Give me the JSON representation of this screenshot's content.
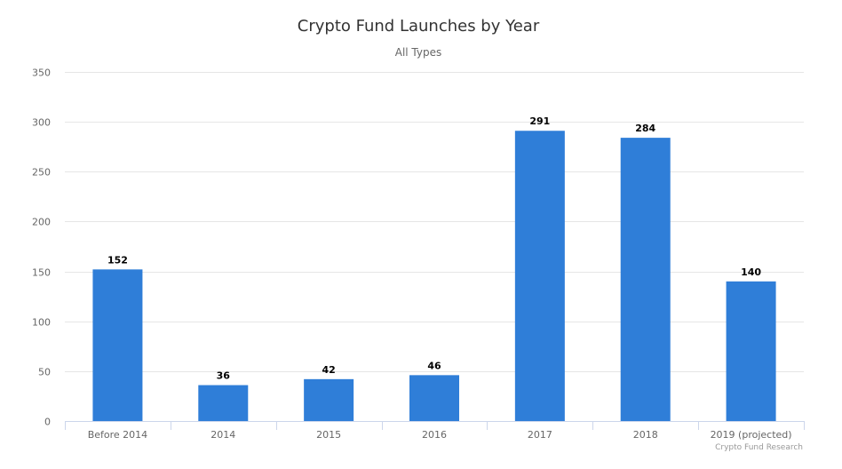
{
  "chart_data": {
    "type": "bar",
    "title": "Crypto Fund Launches by Year",
    "subtitle": "All Types",
    "xlabel": "",
    "ylabel": "",
    "categories": [
      "Before 2014",
      "2014",
      "2015",
      "2016",
      "2017",
      "2018",
      "2019 (projected)"
    ],
    "values": [
      152,
      36,
      42,
      46,
      291,
      284,
      140
    ],
    "ylim": [
      0,
      350
    ],
    "yticks": [
      0,
      50,
      100,
      150,
      200,
      250,
      300,
      350
    ],
    "grid": true,
    "legend": "none",
    "data_labels": true,
    "bar_color": "#2f7ed8",
    "credits": "Crypto Fund Research"
  }
}
